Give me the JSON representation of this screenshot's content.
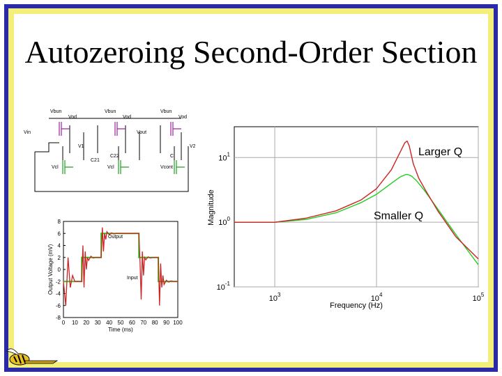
{
  "slide": {
    "title": "Autozeroing Second-Order Section"
  },
  "schematic": {
    "labels": [
      "Vbun",
      "Vod",
      "Vin",
      "V1",
      "C21",
      "Vbun",
      "Vod",
      "C22",
      "Vbun",
      "Vod",
      "Vout",
      "C",
      "V2",
      "Vcl",
      "Vcl",
      "Vcont"
    ]
  },
  "chart_data": [
    {
      "type": "line",
      "title": "",
      "xlabel": "Time (ms)",
      "ylabel": "Output Voltage (mV)",
      "xlim": [
        0,
        100
      ],
      "ylim": [
        -8,
        8
      ],
      "x_ticks": [
        "0",
        "10",
        "20",
        "30",
        "40",
        "50",
        "60",
        "70",
        "80",
        "90",
        "100"
      ],
      "y_ticks": [
        "8",
        "6",
        "4",
        "2",
        "0",
        "-2",
        "-4",
        "-6",
        "-8"
      ],
      "annotations": [
        "Output",
        "Input"
      ],
      "series": [
        {
          "name": "Input",
          "color": "#22cc22",
          "x": [
            0,
            16,
            16,
            33,
            33,
            66,
            66,
            83,
            83,
            100
          ],
          "y": [
            -2,
            -2,
            2,
            2,
            6,
            6,
            2,
            2,
            -2,
            -2
          ]
        },
        {
          "name": "Output",
          "color": "#cc2222",
          "x": [
            0,
            2,
            4,
            6,
            8,
            10,
            12,
            14,
            16,
            17,
            18,
            19,
            20,
            21,
            22,
            24,
            26,
            28,
            30,
            33,
            34,
            35,
            36,
            37,
            38,
            40,
            42,
            44,
            46,
            50,
            55,
            60,
            66,
            67,
            68,
            69,
            70,
            71,
            72,
            74,
            76,
            78,
            80,
            83,
            84,
            85,
            86,
            87,
            88,
            90,
            92,
            94,
            96,
            100
          ],
          "y": [
            -2,
            -6,
            2,
            -3,
            -1,
            -2,
            -2,
            -2,
            -2,
            4,
            -3,
            3,
            0,
            2,
            1.5,
            2.2,
            1.9,
            2,
            2,
            2,
            7,
            3,
            6,
            5,
            6.3,
            5.8,
            6.1,
            5.9,
            6,
            6,
            6,
            6,
            6,
            1,
            -5,
            3,
            -1,
            2,
            1.6,
            2.1,
            1.9,
            2,
            2,
            2,
            -6,
            1,
            -3,
            -1,
            -2.5,
            -1.8,
            -2.1,
            -1.9,
            -2,
            -2
          ]
        }
      ]
    },
    {
      "type": "line",
      "title": "",
      "xlabel": "Frequency (Hz)",
      "ylabel": "Magnitude",
      "xscale": "log",
      "yscale": "log",
      "xlim": [
        400,
        100000
      ],
      "ylim": [
        0.1,
        30
      ],
      "grid": true,
      "x_ticks": [
        {
          "base": "10",
          "exp": "3"
        },
        {
          "base": "10",
          "exp": "4"
        },
        {
          "base": "10",
          "exp": "5"
        }
      ],
      "y_ticks": [
        {
          "base": "10",
          "exp": "1"
        },
        {
          "base": "10",
          "exp": "0"
        },
        {
          "base": "10",
          "exp": "-1"
        }
      ],
      "annotations": [
        "Larger Q",
        "Smaller Q"
      ],
      "series": [
        {
          "name": "Larger Q",
          "color": "#cc2222",
          "x": [
            400,
            1000,
            2000,
            4000,
            7000,
            10000,
            14000,
            17000,
            19000,
            20000,
            21000,
            23000,
            26000,
            30000,
            40000,
            60000,
            100000
          ],
          "y": [
            1,
            1,
            1.15,
            1.5,
            2.2,
            3.3,
            6.5,
            12,
            17,
            18,
            15,
            8,
            4.8,
            3.2,
            1.5,
            0.6,
            0.27
          ]
        },
        {
          "name": "Smaller Q",
          "color": "#22cc22",
          "x": [
            400,
            1000,
            2000,
            4000,
            7000,
            10000,
            14000,
            17000,
            19000,
            20000,
            22000,
            25000,
            30000,
            40000,
            60000,
            100000
          ],
          "y": [
            1,
            1,
            1.1,
            1.4,
            2,
            2.7,
            4,
            5,
            5.4,
            5.5,
            5.2,
            4.3,
            3,
            1.6,
            0.65,
            0.22
          ]
        }
      ]
    }
  ]
}
